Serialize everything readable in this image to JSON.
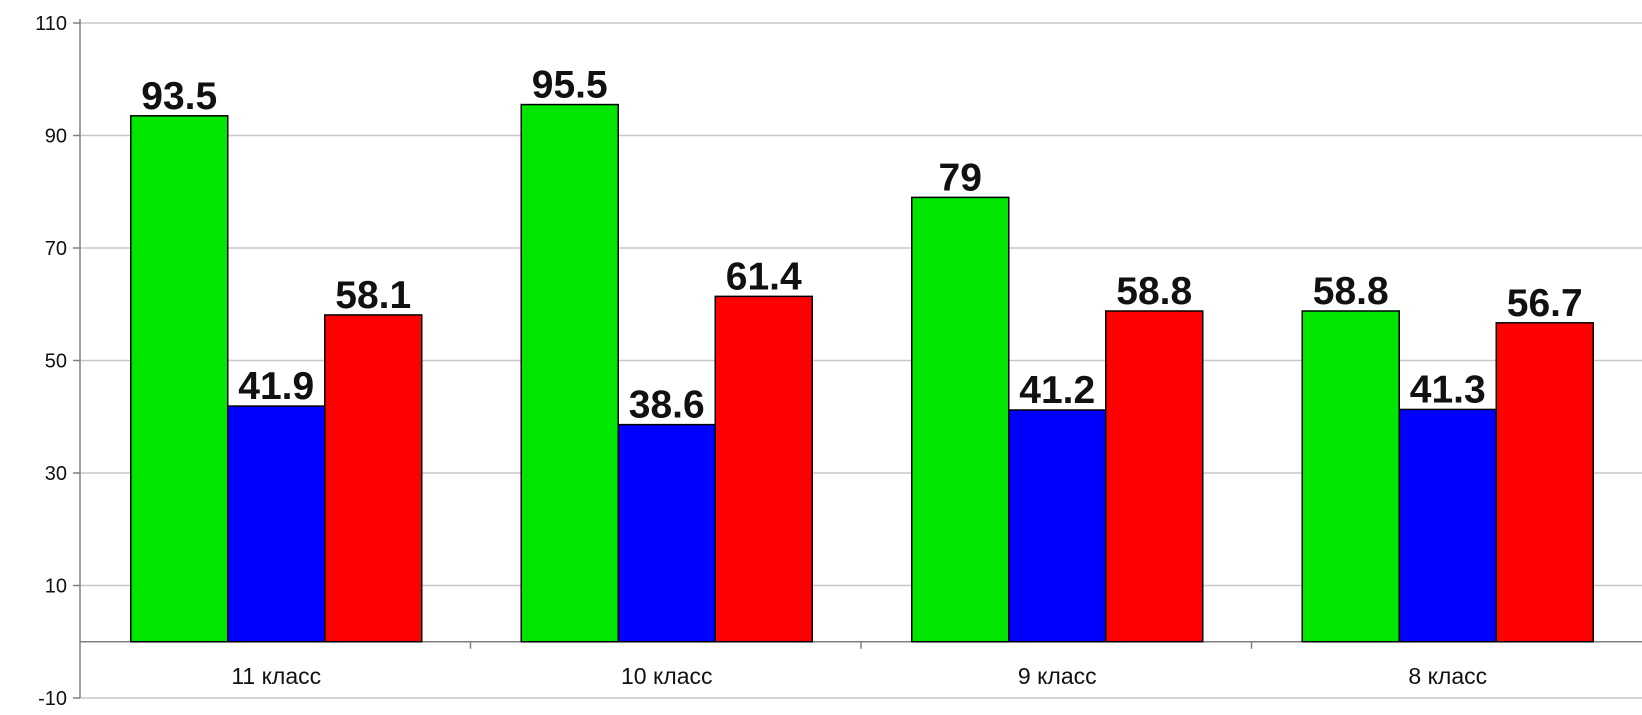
{
  "chart_data": {
    "type": "bar",
    "title": "",
    "xlabel": "",
    "ylabel": "",
    "categories": [
      "11 класс",
      "10 класс",
      "9 класс",
      "8 класс"
    ],
    "series": [
      {
        "values": [
          93.5,
          95.5,
          79,
          58.8
        ],
        "labels": [
          "93.5",
          "95.5",
          "79",
          "58.8"
        ],
        "color": "#00e600"
      },
      {
        "values": [
          41.9,
          38.6,
          41.2,
          41.3
        ],
        "labels": [
          "41.9",
          "38.6",
          "41.2",
          "41.3"
        ],
        "color": "#0000ff"
      },
      {
        "values": [
          58.1,
          61.4,
          58.8,
          56.7
        ],
        "labels": [
          "58.1",
          "61.4",
          "58.8",
          "56.7"
        ],
        "color": "#ff0000"
      }
    ],
    "ylim": [
      -10,
      110
    ],
    "y_ticks": [
      -10,
      10,
      30,
      50,
      70,
      90,
      110
    ],
    "y_tick_labels": [
      "-10",
      "10",
      "30",
      "50",
      "70",
      "90",
      "110"
    ],
    "grid": true,
    "grid_color": "#c8c8c8",
    "axis_color": "#808080",
    "legend": "none"
  }
}
